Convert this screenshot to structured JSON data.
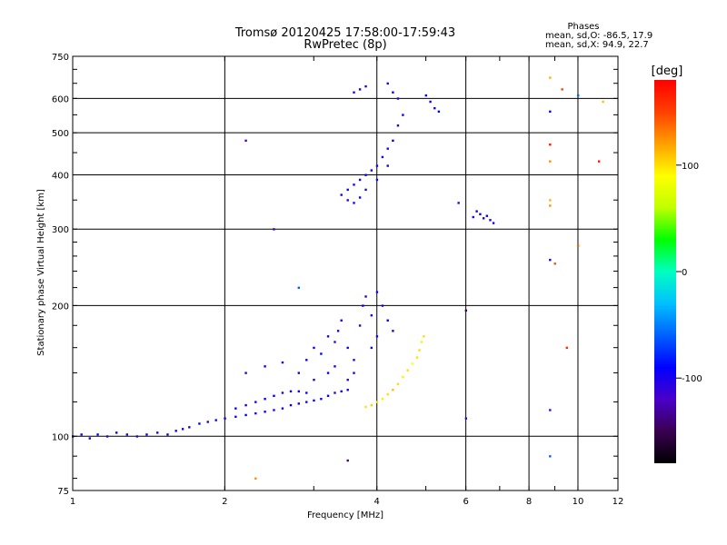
{
  "chart_data": {
    "type": "scatter",
    "title": "Tromsø 20120425 17:58:00-17:59:43",
    "subtitle": "RwPretec (8p)",
    "xlabel": "Frequency [MHz]",
    "ylabel": "Stationary phase Virtual Height [km]",
    "x_scale": "log",
    "y_scale": "log",
    "xlim": [
      1,
      12
    ],
    "ylim": [
      75,
      750
    ],
    "x_ticks": [
      1,
      2,
      4,
      6,
      8,
      10,
      12
    ],
    "y_ticks": [
      75,
      100,
      200,
      300,
      400,
      500,
      600,
      750
    ],
    "grid": true,
    "phase_box": {
      "header": "Phases",
      "line1": "mean, sd,O: -86.5, 17.9",
      "line2": "mean, sd,X:  94.9, 22.7"
    },
    "colorbar": {
      "label": "[deg]",
      "range": [
        -180,
        180
      ],
      "ticks": [
        100,
        0,
        -100
      ],
      "colors": [
        "#000000",
        "#3a0050",
        "#4a00c8",
        "#0000ff",
        "#0060ff",
        "#00c0ff",
        "#00ffc0",
        "#00ff00",
        "#c0ff00",
        "#ffff00",
        "#ffa000",
        "#ff4000",
        "#ff0000"
      ]
    },
    "series": [
      {
        "points": [
          [
            1.0,
            100,
            -100
          ],
          [
            1.04,
            101,
            -95
          ],
          [
            1.08,
            99,
            -100
          ],
          [
            1.12,
            101,
            -90
          ],
          [
            1.17,
            100,
            -100
          ],
          [
            1.22,
            102,
            -95
          ],
          [
            1.28,
            101,
            -100
          ],
          [
            1.34,
            100,
            -100
          ],
          [
            1.4,
            101,
            -95
          ],
          [
            1.47,
            102,
            -100
          ],
          [
            1.54,
            101,
            -90
          ],
          [
            1.6,
            103,
            -100
          ],
          [
            1.65,
            104,
            -95
          ],
          [
            1.7,
            105,
            -100
          ],
          [
            1.78,
            107,
            -90
          ],
          [
            1.85,
            108,
            -100
          ],
          [
            1.92,
            109,
            -100
          ],
          [
            2.0,
            110,
            -95
          ],
          [
            2.1,
            111,
            -100
          ],
          [
            2.2,
            112,
            -90
          ],
          [
            2.3,
            113,
            -100
          ],
          [
            2.4,
            114,
            -95
          ],
          [
            2.5,
            115,
            -100
          ],
          [
            2.6,
            116,
            -100
          ],
          [
            2.7,
            118,
            -90
          ],
          [
            2.8,
            119,
            -100
          ],
          [
            2.9,
            120,
            -100
          ],
          [
            3.0,
            121,
            -95
          ],
          [
            3.1,
            122,
            -100
          ],
          [
            3.2,
            124,
            -90
          ],
          [
            3.3,
            126,
            -110
          ],
          [
            3.4,
            127,
            -100
          ],
          [
            3.5,
            128,
            -100
          ]
        ]
      },
      {
        "points": [
          [
            2.1,
            116,
            -100
          ],
          [
            2.2,
            118,
            -95
          ],
          [
            2.3,
            120,
            -100
          ],
          [
            2.4,
            122,
            -100
          ],
          [
            2.5,
            124,
            -90
          ],
          [
            2.6,
            126,
            -100
          ],
          [
            2.7,
            127,
            -95
          ],
          [
            2.8,
            127,
            -100
          ],
          [
            2.9,
            126,
            -100
          ]
        ]
      },
      {
        "points": [
          [
            2.8,
            140,
            -100
          ],
          [
            2.9,
            150,
            -95
          ],
          [
            3.0,
            160,
            -100
          ],
          [
            3.1,
            155,
            -90
          ],
          [
            3.2,
            170,
            -100
          ],
          [
            3.3,
            165,
            -110
          ],
          [
            3.35,
            175,
            -100
          ],
          [
            3.4,
            185,
            -100
          ],
          [
            3.5,
            160,
            -95
          ],
          [
            3.6,
            150,
            -100
          ],
          [
            3.7,
            180,
            -100
          ],
          [
            3.75,
            200,
            -90
          ],
          [
            3.8,
            210,
            -100
          ],
          [
            3.9,
            190,
            -100
          ],
          [
            4.0,
            215,
            -95
          ],
          [
            4.1,
            200,
            -100
          ],
          [
            4.2,
            185,
            -90
          ],
          [
            4.3,
            175,
            -100
          ],
          [
            3.3,
            145,
            -100
          ],
          [
            3.5,
            135,
            -110
          ],
          [
            3.6,
            140,
            -100
          ],
          [
            3.9,
            160,
            -95
          ],
          [
            4.0,
            170,
            -100
          ],
          [
            2.2,
            140,
            -100
          ],
          [
            2.4,
            145,
            -95
          ],
          [
            2.6,
            148,
            -100
          ],
          [
            3.0,
            135,
            -100
          ],
          [
            3.2,
            140,
            -90
          ]
        ]
      },
      {
        "points": [
          [
            3.8,
            117,
            100
          ],
          [
            3.9,
            118,
            105
          ],
          [
            4.0,
            120,
            100
          ],
          [
            4.1,
            122,
            95
          ],
          [
            4.2,
            125,
            100
          ],
          [
            4.3,
            128,
            110
          ],
          [
            4.4,
            132,
            100
          ],
          [
            4.5,
            137,
            95
          ],
          [
            4.6,
            142,
            100
          ],
          [
            4.7,
            147,
            90
          ],
          [
            4.8,
            152,
            100
          ],
          [
            4.85,
            158,
            100
          ],
          [
            4.9,
            165,
            95
          ],
          [
            4.95,
            170,
            100
          ]
        ]
      },
      {
        "points": [
          [
            3.4,
            360,
            -100
          ],
          [
            3.5,
            370,
            -95
          ],
          [
            3.6,
            380,
            -100
          ],
          [
            3.7,
            390,
            -100
          ],
          [
            3.8,
            400,
            -90
          ],
          [
            3.9,
            410,
            -100
          ],
          [
            4.0,
            420,
            -95
          ],
          [
            4.1,
            440,
            -100
          ],
          [
            4.2,
            460,
            -100
          ],
          [
            4.3,
            480,
            -90
          ],
          [
            4.4,
            520,
            -100
          ],
          [
            4.5,
            550,
            -95
          ],
          [
            3.5,
            350,
            -100
          ],
          [
            3.6,
            345,
            -100
          ],
          [
            3.7,
            355,
            -90
          ],
          [
            3.8,
            370,
            -100
          ],
          [
            4.0,
            390,
            -100
          ],
          [
            4.2,
            420,
            -95
          ]
        ]
      },
      {
        "points": [
          [
            3.6,
            620,
            -100
          ],
          [
            3.7,
            630,
            -95
          ],
          [
            3.8,
            640,
            -100
          ],
          [
            4.2,
            650,
            -100
          ],
          [
            4.3,
            620,
            -90
          ],
          [
            4.4,
            600,
            -100
          ],
          [
            5.0,
            610,
            -95
          ],
          [
            5.1,
            590,
            -100
          ],
          [
            5.2,
            570,
            -100
          ],
          [
            5.3,
            560,
            -90
          ]
        ]
      },
      {
        "points": [
          [
            6.2,
            320,
            -100
          ],
          [
            6.3,
            330,
            -95
          ],
          [
            6.4,
            325,
            -100
          ],
          [
            6.5,
            318,
            -100
          ],
          [
            6.6,
            322,
            -90
          ],
          [
            6.7,
            315,
            -100
          ],
          [
            6.8,
            310,
            -100
          ]
        ]
      },
      {
        "points": [
          [
            8.8,
            670,
            115
          ],
          [
            8.8,
            560,
            -90
          ],
          [
            8.8,
            470,
            170
          ],
          [
            8.8,
            430,
            125
          ],
          [
            8.8,
            350,
            115
          ],
          [
            8.8,
            340,
            125
          ],
          [
            8.8,
            255,
            -100
          ],
          [
            9.3,
            630,
            150
          ],
          [
            9.0,
            250,
            145
          ],
          [
            9.5,
            160,
            160
          ],
          [
            10.0,
            610,
            -60
          ],
          [
            11.2,
            590,
            110
          ],
          [
            11.0,
            430,
            170
          ],
          [
            10.0,
            275,
            140
          ],
          [
            8.8,
            115,
            -120
          ],
          [
            8.8,
            90,
            -60
          ],
          [
            2.2,
            480,
            -120
          ],
          [
            2.3,
            80,
            125
          ],
          [
            2.5,
            300,
            -110
          ],
          [
            2.8,
            220,
            -60
          ],
          [
            3.5,
            88,
            -140
          ],
          [
            6.0,
            195,
            -150
          ],
          [
            6.0,
            110,
            -110
          ],
          [
            5.8,
            345,
            -110
          ]
        ]
      }
    ]
  }
}
